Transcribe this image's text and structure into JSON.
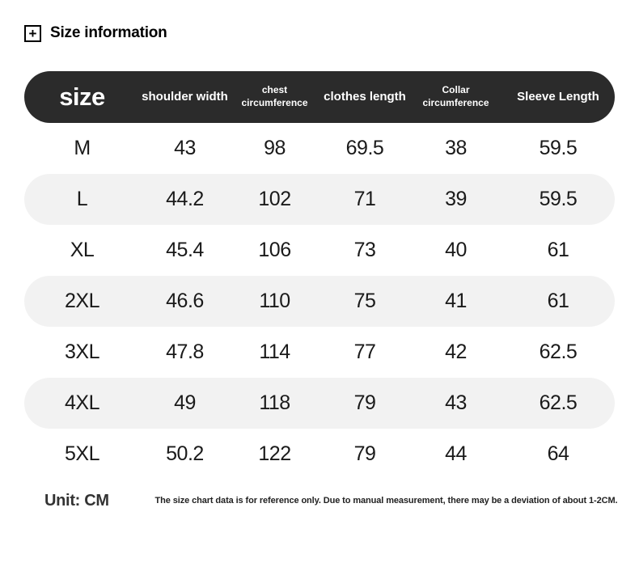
{
  "page": {
    "title": "Size information",
    "plus_icon": "+"
  },
  "table": {
    "header": {
      "size_label": "size",
      "columns": [
        "shoulder width",
        "chest circumference",
        "clothes length",
        "Collar circumference",
        "Sleeve Length"
      ]
    },
    "rows": [
      {
        "size": "M",
        "values": [
          "43",
          "98",
          "69.5",
          "38",
          "59.5"
        ]
      },
      {
        "size": "L",
        "values": [
          "44.2",
          "102",
          "71",
          "39",
          "59.5"
        ]
      },
      {
        "size": "XL",
        "values": [
          "45.4",
          "106",
          "73",
          "40",
          "61"
        ]
      },
      {
        "size": "2XL",
        "values": [
          "46.6",
          "110",
          "75",
          "41",
          "61"
        ]
      },
      {
        "size": "3XL",
        "values": [
          "47.8",
          "114",
          "77",
          "42",
          "62.5"
        ]
      },
      {
        "size": "4XL",
        "values": [
          "49",
          "118",
          "79",
          "43",
          "62.5"
        ]
      },
      {
        "size": "5XL",
        "values": [
          "50.2",
          "122",
          "79",
          "44",
          "64"
        ]
      }
    ]
  },
  "footer": {
    "unit_label": "Unit: CM",
    "disclaimer": "The size chart data is for reference only. Due to manual measurement, there may be a deviation of about 1-2CM."
  },
  "colors": {
    "header_bg": "#2b2b2b",
    "header_text": "#ffffff",
    "row_alt_bg": "#f2f2f2",
    "body_text": "#1a1a1a"
  }
}
